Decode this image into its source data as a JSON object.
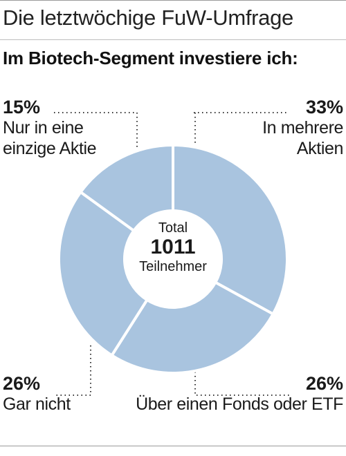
{
  "header": "Die letztwöchige FuW-Umfrage",
  "chart_data": {
    "type": "pie",
    "title": "Im Biotech-Segment investiere ich:",
    "center": {
      "line1": "Total",
      "value": "1011",
      "line2": "Teilnehmer"
    },
    "slices": [
      {
        "percent_label": "33%",
        "value": 33,
        "label_lines": [
          "In mehrere",
          "Aktien"
        ],
        "color": "#a9c4df"
      },
      {
        "percent_label": "26%",
        "value": 26,
        "label_lines": [
          "Über einen Fonds oder ETF"
        ],
        "color": "#a9c4df"
      },
      {
        "percent_label": "26%",
        "value": 26,
        "label_lines": [
          "Gar nicht"
        ],
        "color": "#a9c4df"
      },
      {
        "percent_label": "15%",
        "value": 15,
        "label_lines": [
          "Nur in eine",
          "einzige Aktie"
        ],
        "color": "#a9c4df"
      }
    ],
    "legend": "none"
  }
}
